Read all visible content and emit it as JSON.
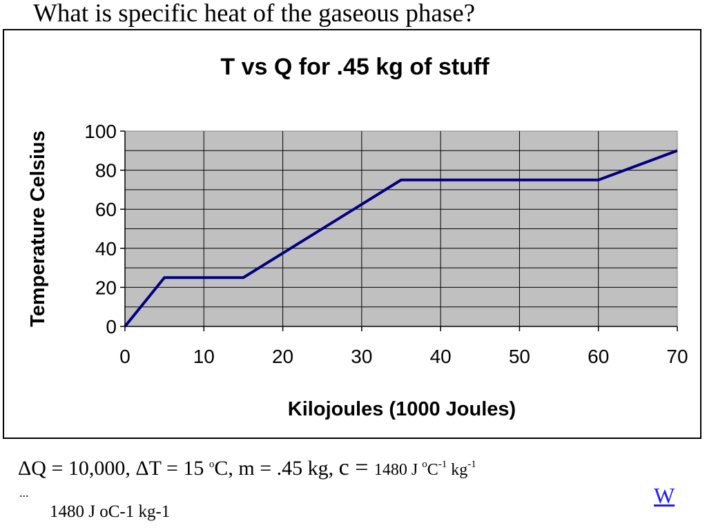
{
  "question": "What is specific heat of the gaseous phase?",
  "equation": {
    "dq": "ΔQ = 10,000, ΔT = 15 ",
    "deg": "o",
    "after_deg": "C, m = .45 kg,  ",
    "c_eq": "c = ",
    "value": "1480 J ",
    "unit_o": "o",
    "unit_c": "C",
    "exp1": "-1",
    "kg": " kg",
    "exp2": "-1"
  },
  "ellipsis": "...",
  "answer_line": "1480 J oC-1 kg-1",
  "link_label": "W",
  "chart_data": {
    "type": "line",
    "title": "T vs Q for .45 kg of stuff",
    "xlabel": "Kilojoules (1000 Joules)",
    "ylabel": "Temperature Celsius",
    "xlim": [
      0,
      70
    ],
    "ylim": [
      0,
      100
    ],
    "x_ticks": [
      0,
      10,
      20,
      30,
      40,
      50,
      60,
      70
    ],
    "y_ticks": [
      0,
      20,
      40,
      60,
      80,
      100
    ],
    "grid": true,
    "series": [
      {
        "x": [
          0,
          5,
          15,
          35,
          60,
          70
        ],
        "y": [
          0,
          25,
          25,
          75,
          75,
          90
        ],
        "color": "#000080"
      }
    ],
    "plot_background": "#c0c0c0"
  }
}
